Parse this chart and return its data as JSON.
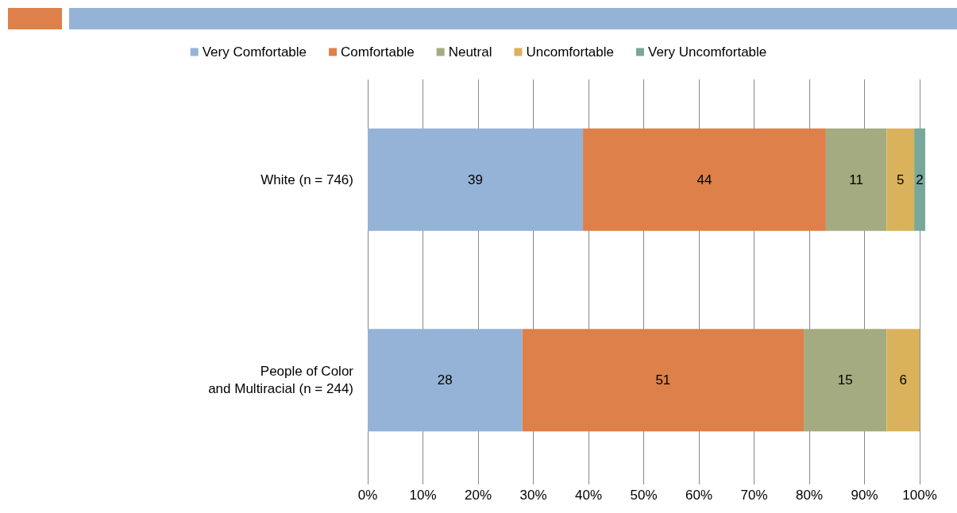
{
  "chart_data": {
    "type": "bar",
    "orientation": "horizontal",
    "stacked": true,
    "data_labels": true,
    "legend": "top",
    "grid": "x",
    "categories": [
      "White (n = 746)",
      "People of Color\nand Multiracial (n = 244)"
    ],
    "series": [
      {
        "name": "Very Comfortable",
        "color": "#95b3d7",
        "values": [
          39,
          28
        ]
      },
      {
        "name": "Comfortable",
        "color": "#dd804a",
        "values": [
          44,
          51
        ]
      },
      {
        "name": "Neutral",
        "color": "#a4ab80",
        "values": [
          11,
          15
        ]
      },
      {
        "name": "Uncomfortable",
        "color": "#d9b25b",
        "values": [
          5,
          6
        ]
      },
      {
        "name": "Very Uncomfortable",
        "color": "#79a89a",
        "values": [
          2,
          null
        ]
      }
    ],
    "xlim": [
      0,
      101
    ],
    "xticks": [
      {
        "value": 0,
        "label": "0%"
      },
      {
        "value": 10,
        "label": "10%"
      },
      {
        "value": 20,
        "label": "20%"
      },
      {
        "value": 30,
        "label": "30%"
      },
      {
        "value": 40,
        "label": "40%"
      },
      {
        "value": 50,
        "label": "50%"
      },
      {
        "value": 60,
        "label": "60%"
      },
      {
        "value": 70,
        "label": "70%"
      },
      {
        "value": 80,
        "label": "80%"
      },
      {
        "value": 90,
        "label": "90%"
      },
      {
        "value": 100,
        "label": "100%"
      }
    ]
  }
}
